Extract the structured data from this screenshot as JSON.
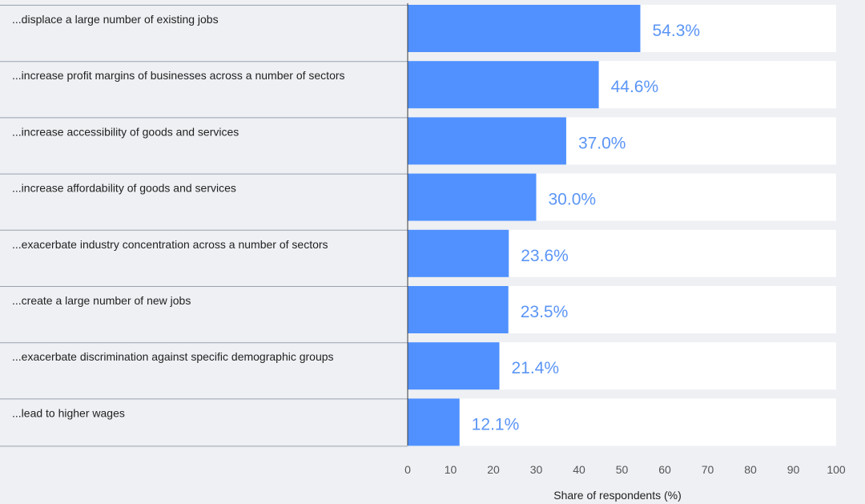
{
  "chart_data": {
    "type": "bar",
    "orientation": "horizontal",
    "title": "",
    "xlabel": "Share of respondents (%)",
    "ylabel": "",
    "xlim": [
      0,
      100
    ],
    "xticks": [
      0,
      10,
      20,
      30,
      40,
      50,
      60,
      70,
      80,
      90,
      100
    ],
    "grid": false,
    "categories": [
      "...displace a large number of existing jobs",
      "...increase profit margins of businesses across a number of sectors",
      "...increase accessibility of goods and services",
      "...increase affordability of goods and services",
      "...exacerbate industry concentration across a number of sectors",
      "...create a large number of new jobs",
      "...exacerbate discrimination against specific demographic groups",
      "...lead to higher wages"
    ],
    "values": [
      54.3,
      44.6,
      37.0,
      30.0,
      23.6,
      23.5,
      21.4,
      12.1
    ],
    "value_labels": [
      "54.3%",
      "44.6%",
      "37.0%",
      "30.0%",
      "23.6%",
      "23.5%",
      "21.4%",
      "12.1%"
    ],
    "colors": {
      "bar": "#5091ff",
      "track": "#ffffff",
      "value_text": "#5b95f5",
      "separator": "#9aa3b1",
      "background": "#eef0f3"
    }
  }
}
